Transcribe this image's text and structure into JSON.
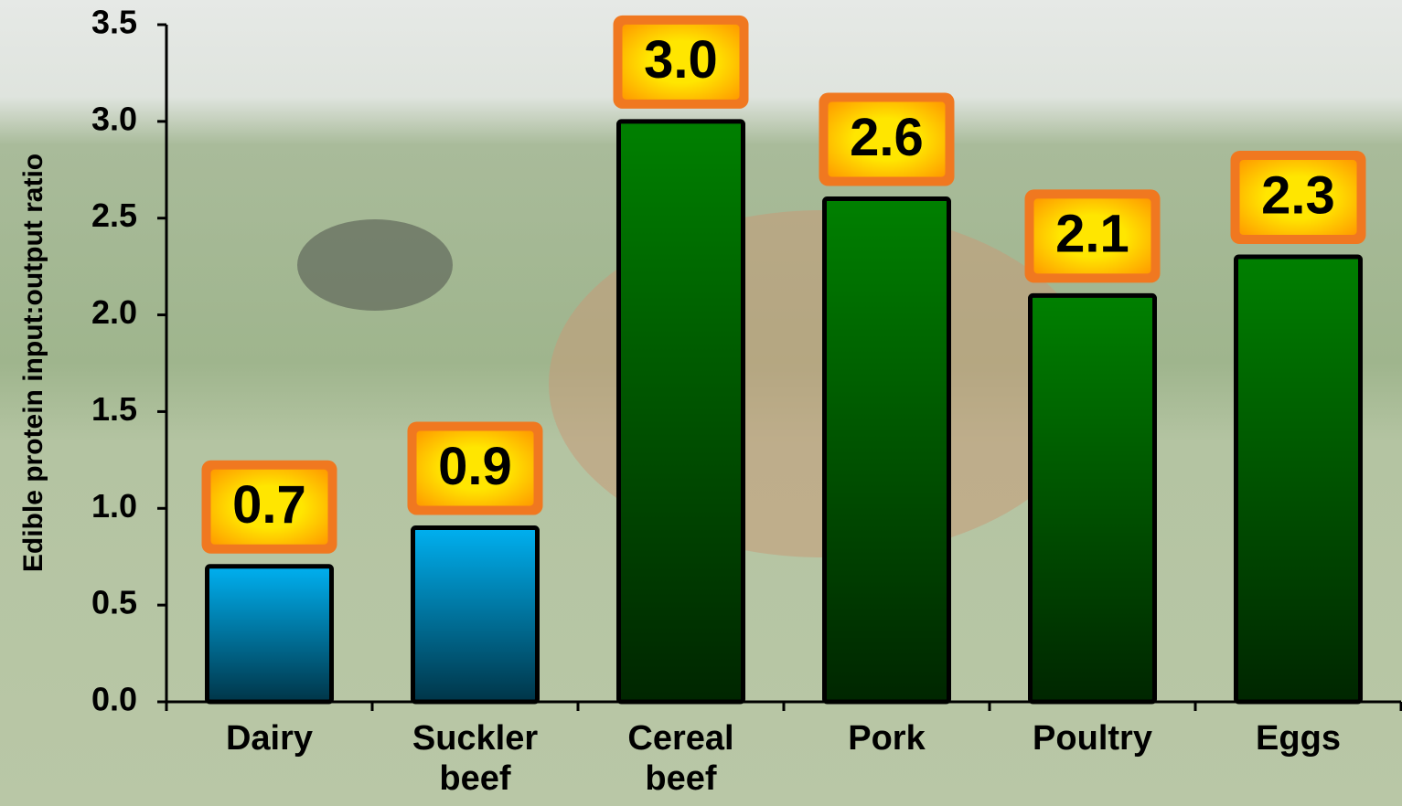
{
  "chart_data": {
    "type": "bar",
    "y_label": "Edible protein input:output ratio",
    "categories": [
      "Dairy",
      "Suckler beef",
      "Cereal beef",
      "Pork",
      "Poultry",
      "Eggs"
    ],
    "values": [
      0.7,
      0.9,
      3.0,
      2.6,
      2.1,
      2.3
    ],
    "value_labels": [
      "0.7",
      "0.9",
      "3.0",
      "2.6",
      "2.1",
      "2.3"
    ],
    "colors": [
      "#00b0f0",
      "#00b0f0",
      "#008000",
      "#008000",
      "#008000",
      "#008000"
    ],
    "ylim": [
      0,
      3.5
    ],
    "yticks": [
      {
        "value": 0,
        "label": "0.0"
      },
      {
        "value": 0.5,
        "label": "0.5"
      },
      {
        "value": 1,
        "label": "1.0"
      },
      {
        "value": 1.5,
        "label": "1.5"
      },
      {
        "value": 2,
        "label": "2.0"
      },
      {
        "value": 2.5,
        "label": "2.5"
      },
      {
        "value": 3,
        "label": "3.0"
      },
      {
        "value": 3.5,
        "label": "3.5"
      }
    ]
  }
}
